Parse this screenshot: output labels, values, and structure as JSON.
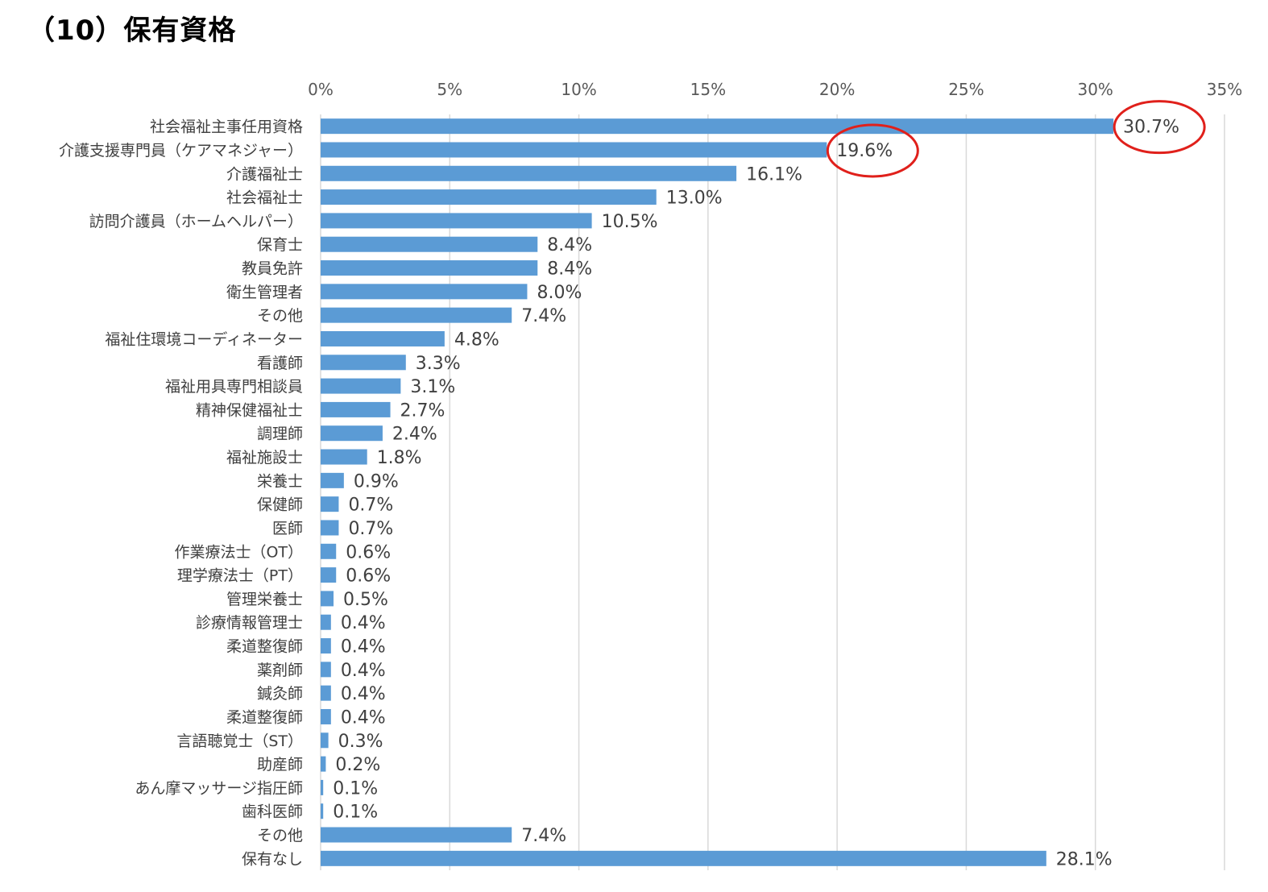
{
  "title": "（10）保有資格",
  "colors": {
    "bar": "#5b9bd5",
    "grid": "#d9d9d9",
    "highlight": "#e0201b",
    "text": "#404040"
  },
  "chart_data": {
    "type": "bar",
    "orientation": "horizontal",
    "xlim": [
      0,
      35
    ],
    "ticks": [
      0,
      5,
      10,
      15,
      20,
      25,
      30,
      35
    ],
    "tick_labels": [
      "0%",
      "5%",
      "10%",
      "15%",
      "20%",
      "25%",
      "30%",
      "35%"
    ],
    "grid": true,
    "categories": [
      "社会福祉主事任用資格",
      "介護支援専門員（ケアマネジャー）",
      "介護福祉士",
      "社会福祉士",
      "訪問介護員（ホームヘルパー）",
      "保育士",
      "教員免許",
      "衛生管理者",
      "その他",
      "福祉住環境コーディネーター",
      "看護師",
      "福祉用具専門相談員",
      "精神保健福祉士",
      "調理師",
      "福祉施設士",
      "栄養士",
      "保健師",
      "医師",
      "作業療法士（OT）",
      "理学療法士（PT）",
      "管理栄養士",
      "診療情報管理士",
      "柔道整復師",
      "薬剤師",
      "鍼灸師",
      "柔道整復師",
      "言語聴覚士（ST）",
      "助産師",
      "あん摩マッサージ指圧師",
      "歯科医師",
      "その他",
      "保有なし"
    ],
    "values": [
      30.7,
      19.6,
      16.1,
      13.0,
      10.5,
      8.4,
      8.4,
      8.0,
      7.4,
      4.8,
      3.3,
      3.1,
      2.7,
      2.4,
      1.8,
      0.9,
      0.7,
      0.7,
      0.6,
      0.6,
      0.5,
      0.4,
      0.4,
      0.4,
      0.4,
      0.4,
      0.3,
      0.2,
      0.1,
      0.1,
      7.4,
      28.1
    ],
    "data_labels": [
      "30.7%",
      "19.6%",
      "16.1%",
      "13.0%",
      "10.5%",
      "8.4%",
      "8.4%",
      "8.0%",
      "7.4%",
      "4.8%",
      "3.3%",
      "3.1%",
      "2.7%",
      "2.4%",
      "1.8%",
      "0.9%",
      "0.7%",
      "0.7%",
      "0.6%",
      "0.6%",
      "0.5%",
      "0.4%",
      "0.4%",
      "0.4%",
      "0.4%",
      "0.4%",
      "0.3%",
      "0.2%",
      "0.1%",
      "0.1%",
      "7.4%",
      "28.1%"
    ],
    "highlighted": [
      0,
      1
    ]
  }
}
